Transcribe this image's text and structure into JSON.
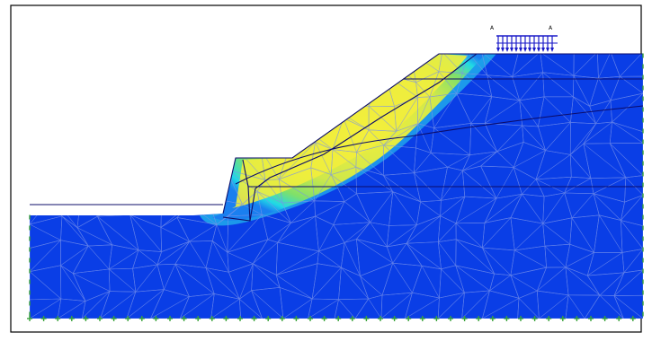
{
  "model": {
    "load_labels": [
      "A",
      "A"
    ],
    "colors": {
      "soil_stable": "#0a3ee6",
      "shear_band_core": "#f2ee3c",
      "shear_band_mid": "#7fe06a",
      "shear_band_edge": "#20d9e6",
      "mesh_lines": "#7a93ea",
      "boundary": "#0c0c6a",
      "support_fixity": "#3aa33a",
      "load_arrows": "#1a1ac8",
      "frame": "#000000"
    },
    "icons": {
      "support": "fixity-tick-icon",
      "load": "distributed-load-icon"
    }
  }
}
